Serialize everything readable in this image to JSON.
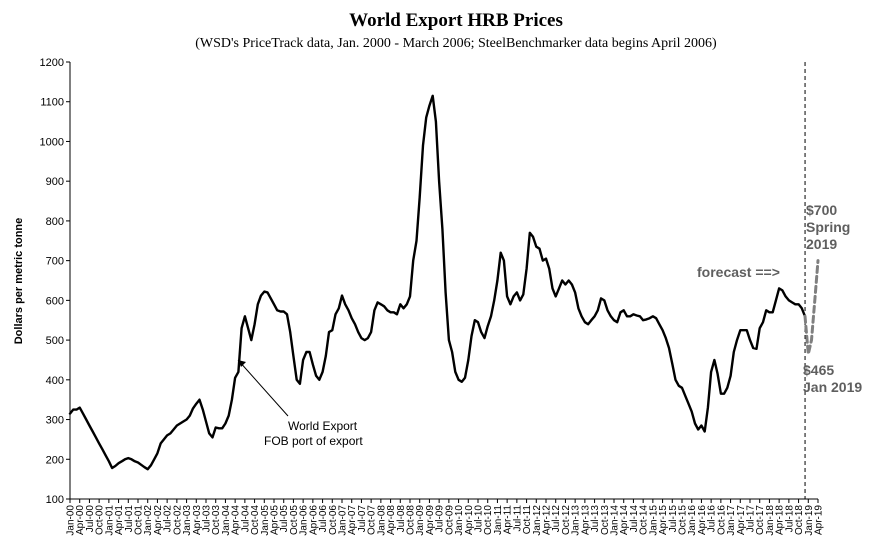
{
  "chart_data": {
    "type": "line",
    "title": "World Export HRB Prices",
    "subtitle": "(WSD's PriceTrack data, Jan. 2000 - March 2006; SteelBenchmarker data begins April 2006)",
    "ylabel": "Dollars per metric tonne",
    "xlabel": "",
    "ylim": [
      100,
      1200
    ],
    "yticks": [
      100,
      200,
      300,
      400,
      500,
      600,
      700,
      800,
      900,
      1000,
      1100,
      1200
    ],
    "xlim": [
      "2000-01",
      "2019-04"
    ],
    "x_tick_labels": [
      "Jan-00",
      "Apr-00",
      "Jul-00",
      "Oct-00",
      "Jan-01",
      "Apr-01",
      "Jul-01",
      "Oct-01",
      "Jan-02",
      "Apr-02",
      "Jul-02",
      "Oct-02",
      "Jan-03",
      "Apr-03",
      "Jul-03",
      "Oct-03",
      "Jan-04",
      "Apr-04",
      "Jul-04",
      "Oct-04",
      "Jan-05",
      "Apr-05",
      "Jul-05",
      "Oct-05",
      "Jan-06",
      "Apr-06",
      "Jul-06",
      "Oct-06",
      "Jan-07",
      "Apr-07",
      "Jul-07",
      "Oct-07",
      "Jan-08",
      "Apr-08",
      "Jul-08",
      "Oct-08",
      "Jan-09",
      "Apr-09",
      "Jul-09",
      "Oct-09",
      "Jan-10",
      "Apr-10",
      "Jul-10",
      "Oct-10",
      "Jan-11",
      "Apr-11",
      "Jul-11",
      "Oct-11",
      "Jan-12",
      "Apr-12",
      "Jul-12",
      "Oct-12",
      "Jan-13",
      "Apr-13",
      "Jul-13",
      "Oct-13",
      "Jan-14",
      "Apr-14",
      "Jul-14",
      "Oct-14",
      "Jan-15",
      "Apr-15",
      "Jul-15",
      "Oct-15",
      "Jan-16",
      "Apr-16",
      "Jul-16",
      "Oct-16",
      "Jan-17",
      "Apr-17",
      "Jul-17",
      "Oct-17",
      "Jan-18",
      "Apr-18",
      "Jul-18",
      "Oct-18",
      "Jan-19",
      "Apr-19"
    ],
    "grid": false,
    "legend": "none",
    "series": [
      {
        "style": "solid",
        "color": "#000000",
        "points": [
          [
            "2000-01",
            315
          ],
          [
            "2000-02",
            325
          ],
          [
            "2000-03",
            325
          ],
          [
            "2000-04",
            330
          ],
          [
            "2000-05",
            315
          ],
          [
            "2000-06",
            300
          ],
          [
            "2000-07",
            285
          ],
          [
            "2000-08",
            270
          ],
          [
            "2000-09",
            255
          ],
          [
            "2000-10",
            240
          ],
          [
            "2000-11",
            225
          ],
          [
            "2000-12",
            210
          ],
          [
            "2001-01",
            195
          ],
          [
            "2001-02",
            178
          ],
          [
            "2001-03",
            183
          ],
          [
            "2001-04",
            190
          ],
          [
            "2001-05",
            195
          ],
          [
            "2001-06",
            200
          ],
          [
            "2001-07",
            203
          ],
          [
            "2001-08",
            200
          ],
          [
            "2001-09",
            195
          ],
          [
            "2001-10",
            192
          ],
          [
            "2001-11",
            186
          ],
          [
            "2001-12",
            180
          ],
          [
            "2002-01",
            175
          ],
          [
            "2002-02",
            185
          ],
          [
            "2002-03",
            200
          ],
          [
            "2002-04",
            215
          ],
          [
            "2002-05",
            240
          ],
          [
            "2002-06",
            250
          ],
          [
            "2002-07",
            260
          ],
          [
            "2002-08",
            265
          ],
          [
            "2002-09",
            275
          ],
          [
            "2002-10",
            285
          ],
          [
            "2002-11",
            290
          ],
          [
            "2002-12",
            295
          ],
          [
            "2003-01",
            300
          ],
          [
            "2003-02",
            310
          ],
          [
            "2003-03",
            328
          ],
          [
            "2003-04",
            340
          ],
          [
            "2003-05",
            350
          ],
          [
            "2003-06",
            325
          ],
          [
            "2003-07",
            295
          ],
          [
            "2003-08",
            265
          ],
          [
            "2003-09",
            255
          ],
          [
            "2003-10",
            280
          ],
          [
            "2003-11",
            278
          ],
          [
            "2003-12",
            278
          ],
          [
            "2004-01",
            290
          ],
          [
            "2004-02",
            310
          ],
          [
            "2004-03",
            350
          ],
          [
            "2004-04",
            405
          ],
          [
            "2004-05",
            420
          ],
          [
            "2004-06",
            530
          ],
          [
            "2004-07",
            560
          ],
          [
            "2004-08",
            530
          ],
          [
            "2004-09",
            500
          ],
          [
            "2004-10",
            540
          ],
          [
            "2004-11",
            590
          ],
          [
            "2004-12",
            612
          ],
          [
            "2005-01",
            622
          ],
          [
            "2005-02",
            620
          ],
          [
            "2005-03",
            605
          ],
          [
            "2005-04",
            590
          ],
          [
            "2005-05",
            575
          ],
          [
            "2005-06",
            572
          ],
          [
            "2005-07",
            572
          ],
          [
            "2005-08",
            565
          ],
          [
            "2005-09",
            520
          ],
          [
            "2005-10",
            460
          ],
          [
            "2005-11",
            400
          ],
          [
            "2005-12",
            390
          ],
          [
            "2006-01",
            450
          ],
          [
            "2006-02",
            470
          ],
          [
            "2006-03",
            470
          ],
          [
            "2006-04",
            438
          ],
          [
            "2006-05",
            410
          ],
          [
            "2006-06",
            400
          ],
          [
            "2006-07",
            420
          ],
          [
            "2006-08",
            460
          ],
          [
            "2006-09",
            520
          ],
          [
            "2006-10",
            525
          ],
          [
            "2006-11",
            565
          ],
          [
            "2006-12",
            580
          ],
          [
            "2007-01",
            612
          ],
          [
            "2007-02",
            590
          ],
          [
            "2007-03",
            575
          ],
          [
            "2007-04",
            555
          ],
          [
            "2007-05",
            540
          ],
          [
            "2007-06",
            520
          ],
          [
            "2007-07",
            505
          ],
          [
            "2007-08",
            500
          ],
          [
            "2007-09",
            505
          ],
          [
            "2007-10",
            520
          ],
          [
            "2007-11",
            575
          ],
          [
            "2007-12",
            595
          ],
          [
            "2008-01",
            590
          ],
          [
            "2008-02",
            585
          ],
          [
            "2008-03",
            575
          ],
          [
            "2008-04",
            570
          ],
          [
            "2008-05",
            570
          ],
          [
            "2008-06",
            565
          ],
          [
            "2008-07",
            590
          ],
          [
            "2008-08",
            580
          ],
          [
            "2008-09",
            590
          ],
          [
            "2008-10",
            610
          ],
          [
            "2008-11",
            700
          ],
          [
            "2008-12",
            750
          ],
          [
            "2009-01",
            860
          ],
          [
            "2009-02",
            990
          ],
          [
            "2009-03",
            1060
          ],
          [
            "2009-04",
            1090
          ],
          [
            "2009-05",
            1115
          ],
          [
            "2009-06",
            1050
          ],
          [
            "2009-07",
            900
          ],
          [
            "2009-08",
            780
          ],
          [
            "2009-09",
            620
          ],
          [
            "2009-10",
            500
          ],
          [
            "2009-11",
            470
          ],
          [
            "2009-12",
            420
          ],
          [
            "2010-01",
            400
          ],
          [
            "2010-02",
            395
          ],
          [
            "2010-03",
            405
          ],
          [
            "2010-04",
            450
          ],
          [
            "2010-05",
            510
          ],
          [
            "2010-06",
            550
          ],
          [
            "2010-07",
            545
          ],
          [
            "2010-08",
            520
          ],
          [
            "2010-09",
            505
          ],
          [
            "2010-10",
            535
          ],
          [
            "2010-11",
            560
          ],
          [
            "2010-12",
            600
          ],
          [
            "2011-01",
            650
          ],
          [
            "2011-02",
            720
          ],
          [
            "2011-03",
            700
          ],
          [
            "2011-04",
            610
          ],
          [
            "2011-05",
            590
          ],
          [
            "2011-06",
            610
          ],
          [
            "2011-07",
            620
          ],
          [
            "2011-08",
            600
          ],
          [
            "2011-09",
            615
          ],
          [
            "2011-10",
            680
          ],
          [
            "2011-11",
            770
          ],
          [
            "2011-12",
            760
          ],
          [
            "2012-01",
            735
          ],
          [
            "2012-02",
            730
          ],
          [
            "2012-03",
            700
          ],
          [
            "2012-04",
            705
          ],
          [
            "2012-05",
            680
          ],
          [
            "2012-06",
            630
          ],
          [
            "2012-07",
            610
          ],
          [
            "2012-08",
            630
          ],
          [
            "2012-09",
            650
          ],
          [
            "2012-10",
            640
          ],
          [
            "2012-11",
            650
          ],
          [
            "2012-12",
            640
          ],
          [
            "2013-01",
            620
          ],
          [
            "2013-02",
            580
          ],
          [
            "2013-03",
            560
          ],
          [
            "2013-04",
            545
          ],
          [
            "2013-05",
            540
          ],
          [
            "2013-06",
            550
          ],
          [
            "2013-07",
            560
          ],
          [
            "2013-08",
            575
          ],
          [
            "2013-09",
            605
          ],
          [
            "2013-10",
            600
          ],
          [
            "2013-11",
            575
          ],
          [
            "2013-12",
            560
          ],
          [
            "2014-01",
            550
          ],
          [
            "2014-02",
            545
          ],
          [
            "2014-03",
            570
          ],
          [
            "2014-04",
            575
          ],
          [
            "2014-05",
            560
          ],
          [
            "2014-06",
            560
          ],
          [
            "2014-07",
            565
          ],
          [
            "2014-08",
            562
          ],
          [
            "2014-09",
            560
          ],
          [
            "2014-10",
            550
          ],
          [
            "2014-11",
            552
          ],
          [
            "2014-12",
            555
          ],
          [
            "2015-01",
            560
          ],
          [
            "2015-02",
            555
          ],
          [
            "2015-03",
            540
          ],
          [
            "2015-04",
            525
          ],
          [
            "2015-05",
            505
          ],
          [
            "2015-06",
            480
          ],
          [
            "2015-07",
            440
          ],
          [
            "2015-08",
            400
          ],
          [
            "2015-09",
            385
          ],
          [
            "2015-10",
            380
          ],
          [
            "2015-11",
            360
          ],
          [
            "2015-12",
            340
          ],
          [
            "2016-01",
            320
          ],
          [
            "2016-02",
            290
          ],
          [
            "2016-03",
            275
          ],
          [
            "2016-04",
            285
          ],
          [
            "2016-05",
            270
          ],
          [
            "2016-06",
            330
          ],
          [
            "2016-07",
            420
          ],
          [
            "2016-08",
            450
          ],
          [
            "2016-09",
            415
          ],
          [
            "2016-10",
            365
          ],
          [
            "2016-11",
            365
          ],
          [
            "2016-12",
            380
          ],
          [
            "2017-01",
            410
          ],
          [
            "2017-02",
            470
          ],
          [
            "2017-03",
            500
          ],
          [
            "2017-04",
            525
          ],
          [
            "2017-05",
            525
          ],
          [
            "2017-06",
            525
          ],
          [
            "2017-07",
            500
          ],
          [
            "2017-08",
            480
          ],
          [
            "2017-09",
            478
          ],
          [
            "2017-10",
            530
          ],
          [
            "2017-11",
            545
          ],
          [
            "2017-12",
            575
          ],
          [
            "2018-01",
            570
          ],
          [
            "2018-02",
            570
          ],
          [
            "2018-03",
            600
          ],
          [
            "2018-04",
            630
          ],
          [
            "2018-05",
            625
          ],
          [
            "2018-06",
            610
          ],
          [
            "2018-07",
            600
          ],
          [
            "2018-08",
            595
          ],
          [
            "2018-09",
            590
          ],
          [
            "2018-10",
            590
          ],
          [
            "2018-11",
            580
          ],
          [
            "2018-12",
            560
          ]
        ]
      },
      {
        "style": "dashed",
        "color": "#7f7f7f",
        "points": [
          [
            "2018-12",
            560
          ],
          [
            "2019-01",
            465
          ],
          [
            "2019-02",
            500
          ],
          [
            "2019-03",
            600
          ],
          [
            "2019-04",
            700
          ]
        ]
      }
    ],
    "vertical_reference": {
      "x": "2018-12",
      "style": "dashed"
    },
    "annotations": {
      "world_export": [
        "World Export",
        "FOB port of export"
      ],
      "forecast": "forecast ==>",
      "spring": [
        "$700",
        "Spring",
        "2019"
      ],
      "jan": [
        "$465",
        "Jan 2019"
      ]
    }
  }
}
